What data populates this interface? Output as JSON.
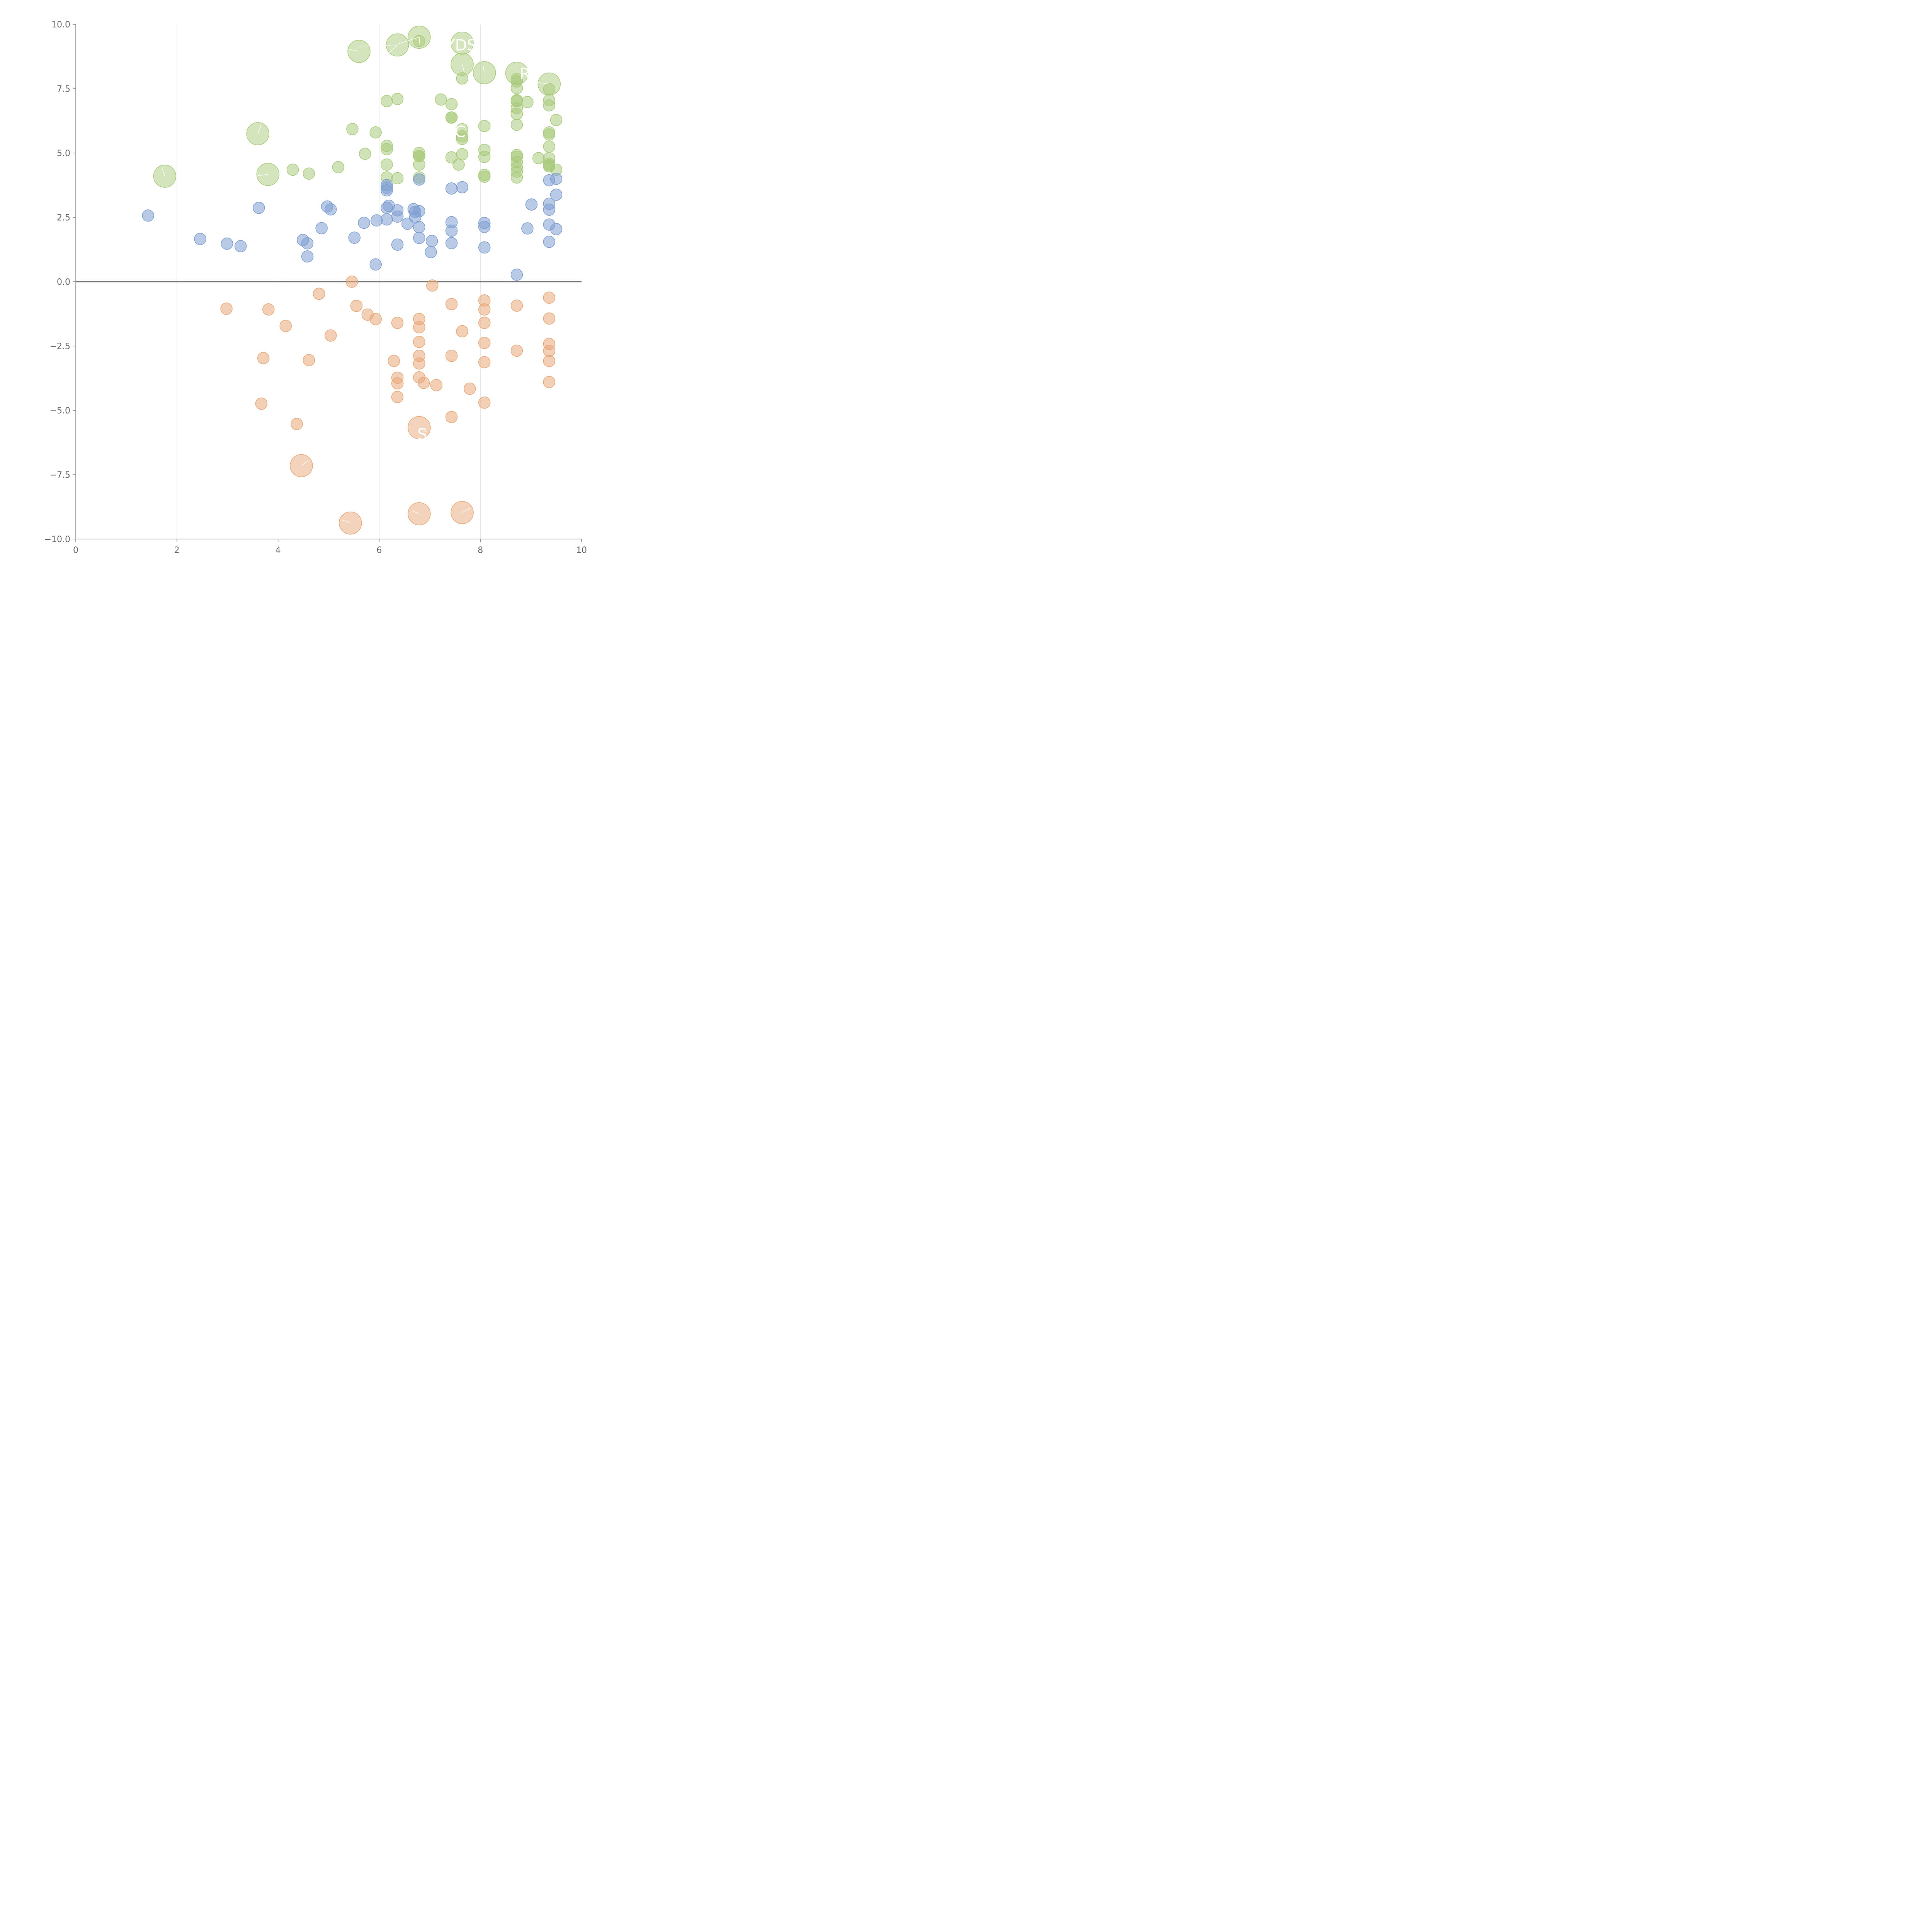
{
  "chart_data": {
    "type": "scatter",
    "title": "",
    "xlabel": "",
    "ylabel": "",
    "xlim": [
      0,
      10
    ],
    "ylim": [
      -10,
      10
    ],
    "x_ticks": [
      "0",
      "2",
      "4",
      "6",
      "8",
      "10"
    ],
    "y_ticks": [
      "10.0",
      "7.5",
      "5.0",
      "2.5",
      "0.0",
      "−2.5",
      "−5.0",
      "−7.5",
      "−10.0"
    ],
    "grid": "vertical",
    "zero_line": true,
    "colors": {
      "green": "#a9cb7c",
      "blue": "#7f9fd2",
      "orange": "#e8a878"
    },
    "series": [
      {
        "color": "#a9cb7c",
        "points": [
          [
            6.15,
            7.02
          ],
          [
            6.36,
            7.1
          ],
          [
            7.22,
            7.08
          ],
          [
            7.43,
            6.9
          ],
          [
            7.43,
            6.38
          ],
          [
            7.43,
            6.38
          ],
          [
            7.64,
            5.92
          ],
          [
            7.64,
            5.65
          ],
          [
            7.64,
            5.55
          ],
          [
            8.08,
            6.05
          ],
          [
            8.72,
            7.88
          ],
          [
            8.72,
            7.78
          ],
          [
            8.72,
            7.52
          ],
          [
            8.72,
            7.05
          ],
          [
            8.72,
            7.02
          ],
          [
            8.72,
            6.75
          ],
          [
            8.72,
            6.52
          ],
          [
            8.72,
            6.1
          ],
          [
            8.93,
            6.98
          ],
          [
            9.36,
            7.48
          ],
          [
            9.36,
            7.05
          ],
          [
            9.36,
            6.85
          ],
          [
            9.5,
            6.28
          ],
          [
            9.36,
            5.8
          ],
          [
            9.36,
            5.72
          ],
          [
            9.36,
            5.25
          ],
          [
            9.15,
            4.8
          ],
          [
            9.36,
            4.8
          ],
          [
            9.36,
            4.58
          ],
          [
            9.36,
            4.52
          ],
          [
            9.36,
            4.48
          ],
          [
            9.5,
            4.35
          ],
          [
            8.72,
            4.92
          ],
          [
            8.72,
            4.85
          ],
          [
            8.72,
            4.65
          ],
          [
            8.72,
            4.45
          ],
          [
            8.72,
            4.28
          ],
          [
            8.72,
            4.05
          ],
          [
            8.08,
            5.12
          ],
          [
            8.08,
            4.85
          ],
          [
            8.08,
            4.15
          ],
          [
            8.08,
            4.08
          ],
          [
            7.64,
            4.95
          ],
          [
            7.43,
            4.83
          ],
          [
            7.57,
            4.55
          ],
          [
            6.79,
            5.0
          ],
          [
            6.79,
            4.88
          ],
          [
            6.79,
            4.88
          ],
          [
            6.79,
            4.55
          ],
          [
            6.79,
            4.05
          ],
          [
            6.15,
            5.28
          ],
          [
            6.15,
            5.15
          ],
          [
            6.15,
            4.55
          ],
          [
            6.15,
            4.05
          ],
          [
            6.36,
            4.02
          ],
          [
            5.93,
            5.8
          ],
          [
            5.47,
            5.93
          ],
          [
            5.72,
            4.97
          ],
          [
            5.19,
            4.45
          ],
          [
            4.61,
            4.2
          ],
          [
            4.29,
            4.35
          ],
          [
            7.64,
            7.9
          ],
          [
            6.79,
            9.35
          ]
        ],
        "bubbles": [
          [
            1.76,
            4.1
          ],
          [
            3.6,
            5.75
          ],
          [
            3.8,
            4.17
          ],
          [
            5.6,
            8.95
          ],
          [
            6.36,
            9.2
          ],
          [
            6.79,
            9.5
          ],
          [
            7.64,
            9.27
          ],
          [
            7.64,
            8.45
          ],
          [
            8.08,
            8.12
          ],
          [
            8.72,
            8.1
          ],
          [
            9.36,
            7.68
          ]
        ]
      },
      {
        "color": "#7f9fd2",
        "points": [
          [
            1.43,
            2.57
          ],
          [
            2.46,
            1.66
          ],
          [
            2.99,
            1.48
          ],
          [
            3.26,
            1.38
          ],
          [
            3.62,
            2.87
          ],
          [
            4.49,
            1.62
          ],
          [
            4.58,
            1.49
          ],
          [
            4.58,
            0.98
          ],
          [
            4.86,
            2.08
          ],
          [
            4.97,
            2.92
          ],
          [
            5.04,
            2.81
          ],
          [
            5.51,
            1.71
          ],
          [
            5.7,
            2.29
          ],
          [
            5.93,
            0.67
          ],
          [
            5.95,
            2.38
          ],
          [
            6.15,
            2.42
          ],
          [
            6.15,
            2.87
          ],
          [
            6.19,
            2.95
          ],
          [
            6.15,
            3.55
          ],
          [
            6.15,
            3.65
          ],
          [
            6.15,
            3.75
          ],
          [
            6.36,
            1.44
          ],
          [
            6.36,
            2.53
          ],
          [
            6.36,
            2.77
          ],
          [
            6.56,
            2.25
          ],
          [
            6.68,
            2.82
          ],
          [
            6.71,
            2.71
          ],
          [
            6.71,
            2.5
          ],
          [
            6.79,
            2.74
          ],
          [
            6.79,
            2.12
          ],
          [
            6.79,
            1.7
          ],
          [
            6.79,
            3.97
          ],
          [
            7.02,
            1.15
          ],
          [
            7.04,
            1.58
          ],
          [
            7.43,
            3.62
          ],
          [
            7.43,
            2.31
          ],
          [
            7.43,
            1.98
          ],
          [
            7.43,
            1.5
          ],
          [
            7.64,
            3.67
          ],
          [
            8.08,
            2.28
          ],
          [
            8.08,
            2.13
          ],
          [
            8.08,
            1.33
          ],
          [
            8.72,
            0.27
          ],
          [
            8.93,
            2.07
          ],
          [
            9.01,
            3.0
          ],
          [
            9.36,
            3.94
          ],
          [
            9.36,
            3.03
          ],
          [
            9.36,
            2.8
          ],
          [
            9.36,
            2.22
          ],
          [
            9.36,
            1.55
          ],
          [
            9.5,
            4.0
          ],
          [
            9.5,
            3.38
          ],
          [
            9.5,
            2.04
          ]
        ],
        "bubbles": []
      },
      {
        "color": "#e8a878",
        "points": [
          [
            2.98,
            -1.05
          ],
          [
            3.81,
            -1.08
          ],
          [
            4.15,
            -1.72
          ],
          [
            3.71,
            -2.97
          ],
          [
            3.67,
            -4.74
          ],
          [
            4.37,
            -5.53
          ],
          [
            4.61,
            -3.05
          ],
          [
            4.81,
            -0.47
          ],
          [
            5.04,
            -2.09
          ],
          [
            5.46,
            0.0
          ],
          [
            5.55,
            -0.94
          ],
          [
            5.77,
            -1.28
          ],
          [
            5.93,
            -1.45
          ],
          [
            6.36,
            -1.6
          ],
          [
            6.29,
            -3.08
          ],
          [
            6.36,
            -3.73
          ],
          [
            6.36,
            -3.95
          ],
          [
            6.36,
            -4.48
          ],
          [
            6.79,
            -1.45
          ],
          [
            6.79,
            -1.77
          ],
          [
            6.79,
            -2.34
          ],
          [
            6.79,
            -2.88
          ],
          [
            6.79,
            -3.18
          ],
          [
            6.79,
            -3.72
          ],
          [
            6.88,
            -3.93
          ],
          [
            7.05,
            -0.15
          ],
          [
            7.13,
            -4.02
          ],
          [
            7.43,
            -0.87
          ],
          [
            7.43,
            -2.88
          ],
          [
            7.43,
            -5.26
          ],
          [
            7.64,
            -1.93
          ],
          [
            7.79,
            -4.16
          ],
          [
            8.08,
            -0.73
          ],
          [
            8.08,
            -1.08
          ],
          [
            8.08,
            -1.6
          ],
          [
            8.08,
            -2.38
          ],
          [
            8.08,
            -3.13
          ],
          [
            8.08,
            -4.7
          ],
          [
            8.72,
            -0.93
          ],
          [
            8.72,
            -2.68
          ],
          [
            9.36,
            -0.62
          ],
          [
            9.36,
            -1.43
          ],
          [
            9.36,
            -2.42
          ],
          [
            9.36,
            -2.69
          ],
          [
            9.36,
            -3.08
          ],
          [
            9.36,
            -3.9
          ]
        ],
        "bubbles": [
          [
            4.46,
            -7.15
          ],
          [
            5.43,
            -9.38
          ],
          [
            6.79,
            -5.67
          ],
          [
            6.79,
            -9.02
          ],
          [
            7.64,
            -8.97
          ]
        ]
      }
    ],
    "label_links": [
      [
        1.76,
        4.1,
        1.7,
        4.45
      ],
      [
        3.6,
        5.75,
        3.66,
        6.08
      ],
      [
        3.8,
        4.17,
        3.6,
        4.12
      ],
      [
        5.6,
        8.95,
        5.4,
        9.03
      ],
      [
        6.36,
        9.2,
        6.2,
        8.9
      ],
      [
        6.36,
        9.2,
        5.6,
        9.15
      ],
      [
        6.79,
        9.5,
        6.8,
        9.25
      ],
      [
        6.79,
        9.5,
        6.36,
        9.23
      ],
      [
        7.64,
        8.45,
        7.68,
        8.15
      ],
      [
        8.08,
        8.12,
        8.05,
        8.4
      ],
      [
        9.36,
        7.68,
        9.1,
        7.75
      ],
      [
        4.46,
        -7.15,
        4.6,
        -6.95
      ],
      [
        5.43,
        -9.38,
        5.26,
        -9.25
      ],
      [
        6.79,
        -5.67,
        6.95,
        -5.85
      ],
      [
        6.79,
        -9.02,
        6.65,
        -8.9
      ],
      [
        7.64,
        -8.97,
        7.8,
        -8.8
      ]
    ],
    "point_labels": [
      {
        "text": "YDS",
        "x": 7.62,
        "y": 9.2
      },
      {
        "text": "R",
        "x": 8.88,
        "y": 8.08
      },
      {
        "text": "C",
        "x": 7.6,
        "y": 5.83
      },
      {
        "text": "S",
        "x": 6.85,
        "y": -5.92
      }
    ]
  }
}
